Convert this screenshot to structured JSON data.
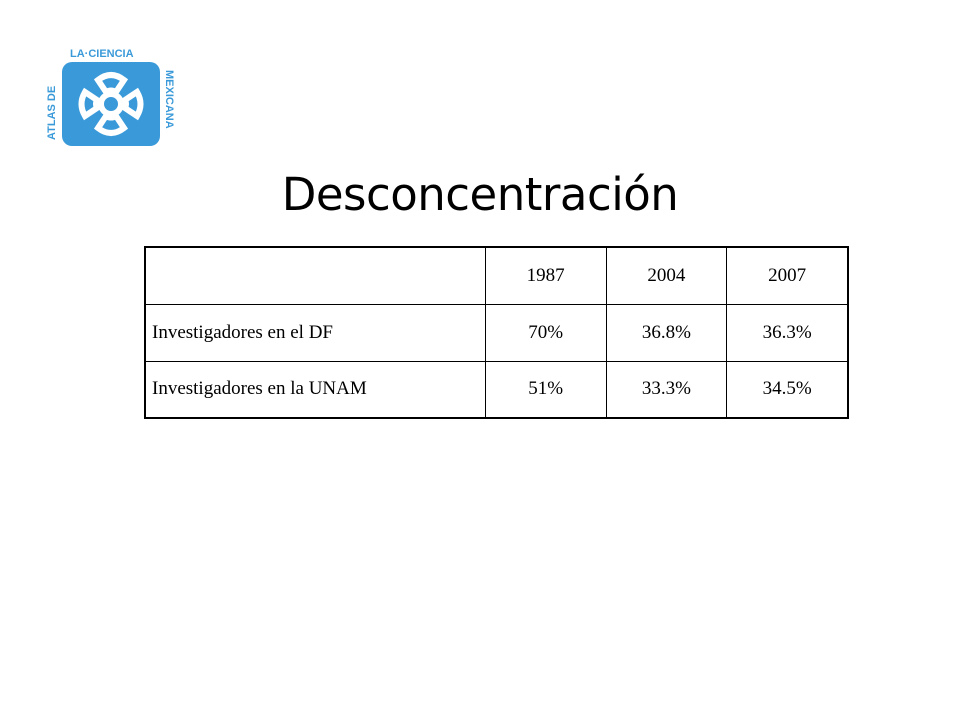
{
  "logo": {
    "text_left": "ATLAS DE",
    "text_top": "LA·CIENCIA",
    "text_right": "MEXICANA"
  },
  "title": "Desconcentración",
  "table": {
    "header": [
      "1987",
      "2004",
      "2007"
    ],
    "rows": [
      {
        "label": "Investigadores en el DF",
        "values": [
          "70%",
          "36.8%",
          "36.3%"
        ]
      },
      {
        "label": "Investigadores en la UNAM",
        "values": [
          "51%",
          "33.3%",
          "34.5%"
        ]
      }
    ]
  }
}
